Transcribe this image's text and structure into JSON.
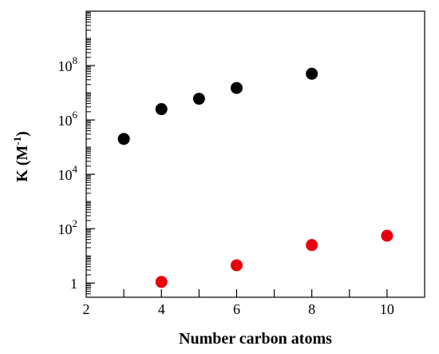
{
  "chart_data": {
    "type": "scatter",
    "title": "",
    "xlabel": "Number carbon atoms",
    "ylabel": {
      "main": "K (M",
      "sup": "-1",
      "close": ")"
    },
    "xlim": [
      2,
      11
    ],
    "ylim": [
      0.3,
      10000000000
    ],
    "y_scale": "log",
    "x_ticks": [
      2,
      4,
      6,
      8,
      10
    ],
    "y_tick_labels": [
      {
        "value": 1,
        "text": "1"
      },
      {
        "value": 100,
        "base": "10",
        "exp": "2"
      },
      {
        "value": 10000,
        "base": "10",
        "exp": "4"
      },
      {
        "value": 1000000,
        "base": "10",
        "exp": "6"
      },
      {
        "value": 100000000,
        "base": "10",
        "exp": "8"
      }
    ],
    "grid": false,
    "series": [
      {
        "color": "#000000",
        "points": [
          {
            "x": 3,
            "y": 200000
          },
          {
            "x": 4,
            "y": 2500000
          },
          {
            "x": 5,
            "y": 6000000
          },
          {
            "x": 6,
            "y": 15000000
          },
          {
            "x": 8,
            "y": 50000000
          }
        ]
      },
      {
        "color": "#e8000b",
        "points": [
          {
            "x": 4,
            "y": 1.1
          },
          {
            "x": 6,
            "y": 4.5
          },
          {
            "x": 8,
            "y": 25
          },
          {
            "x": 10,
            "y": 55
          }
        ]
      }
    ]
  }
}
